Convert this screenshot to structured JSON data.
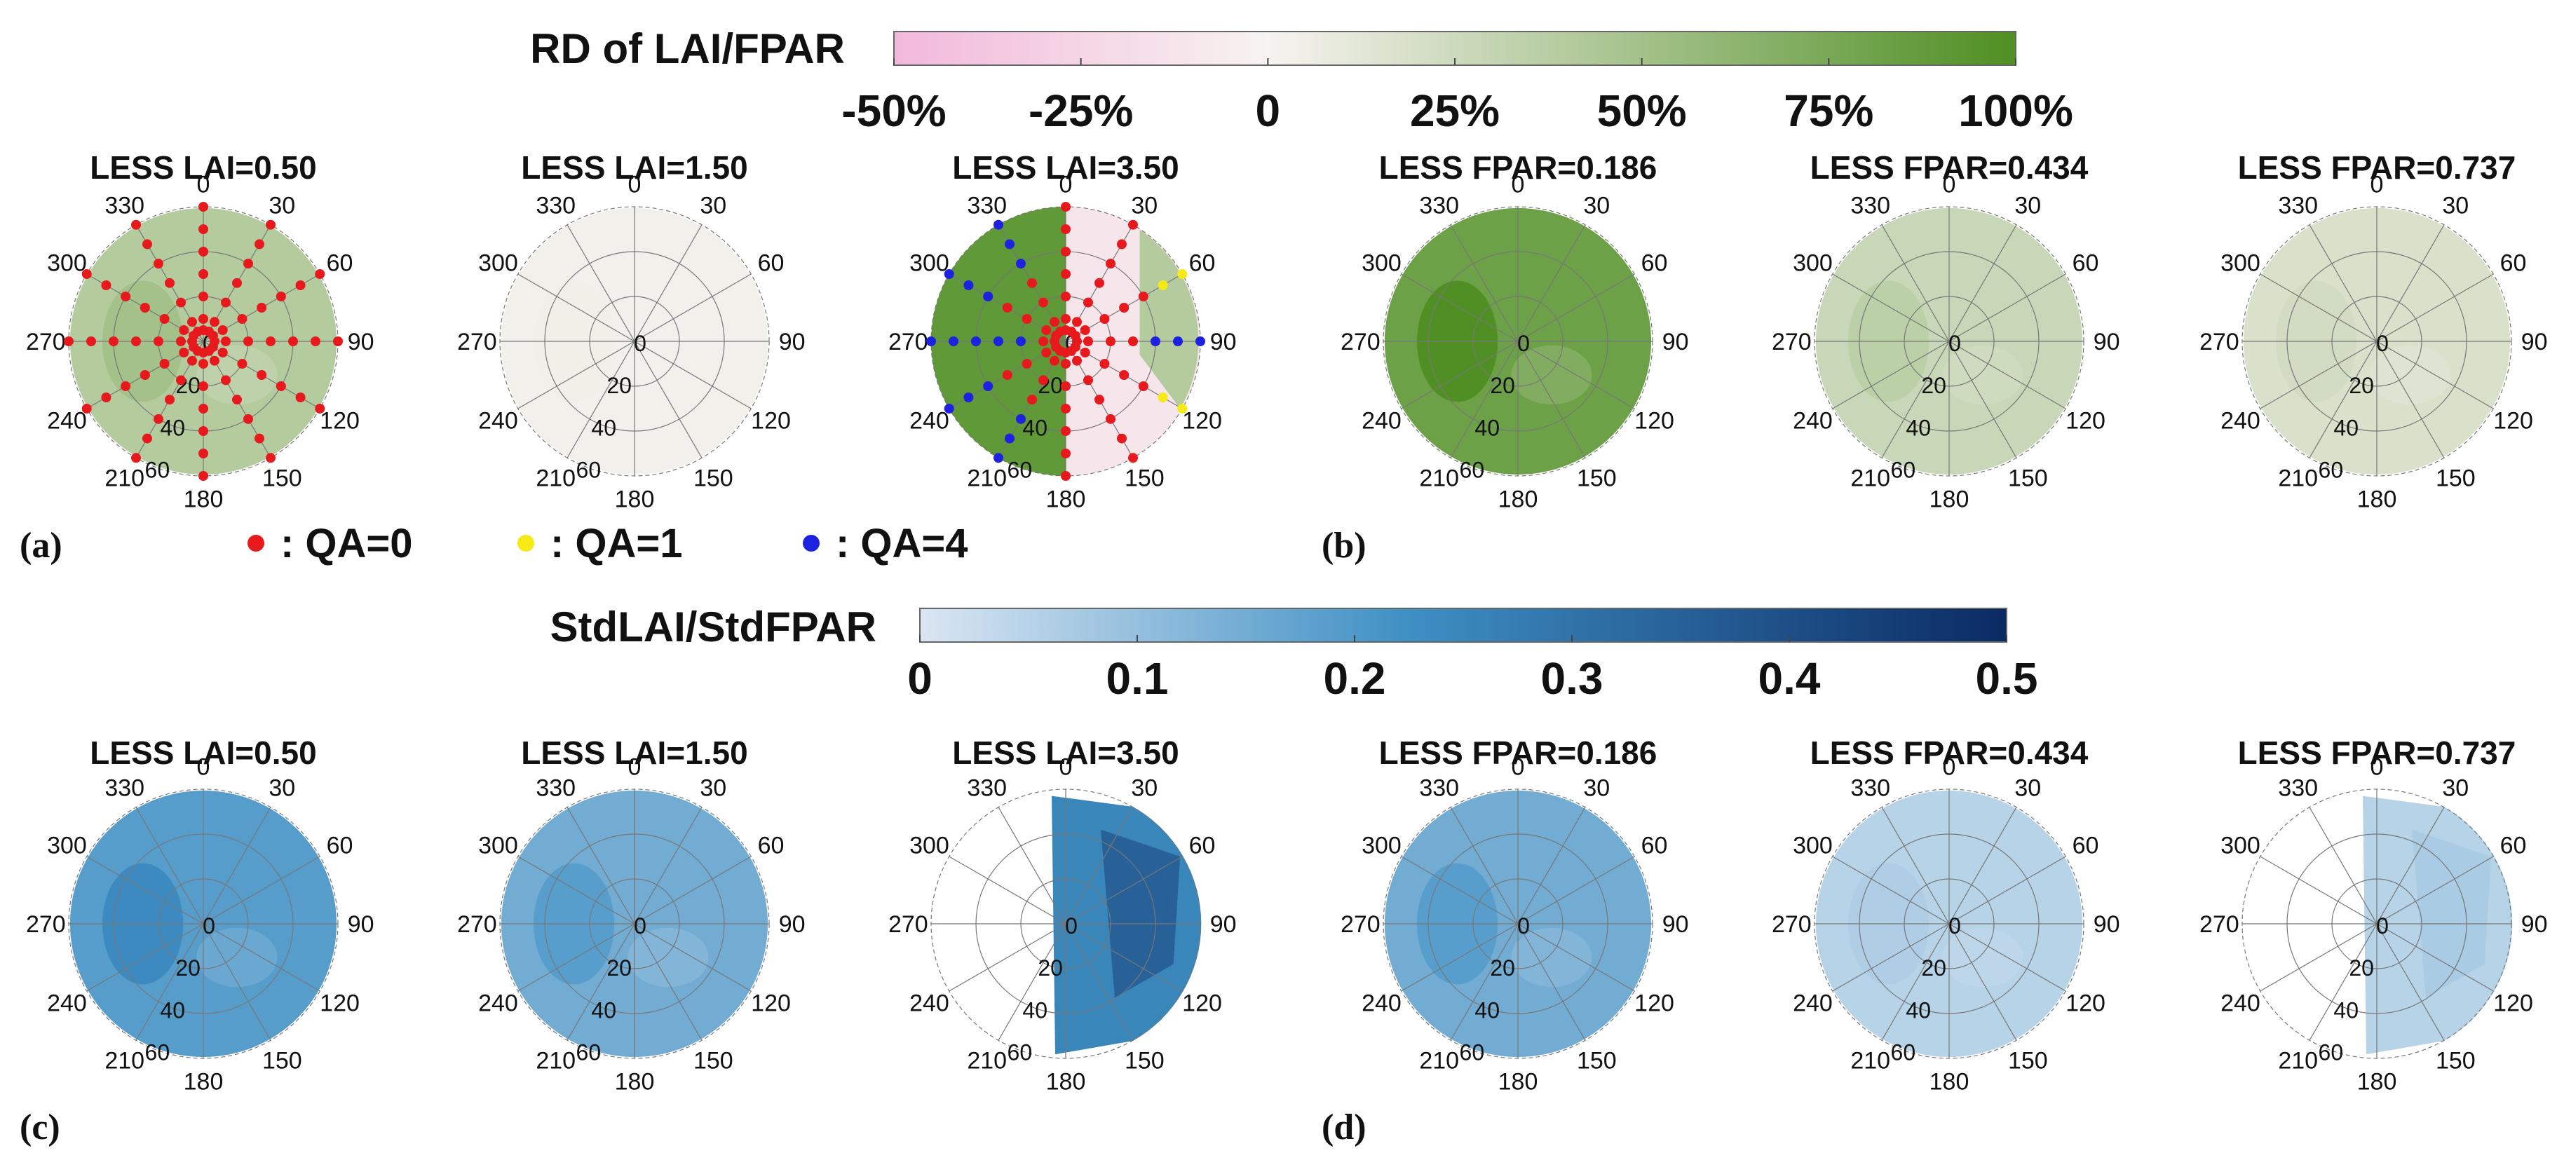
{
  "chart_data": {
    "type": "heatmap",
    "plot_kind": "polar contour maps (view azimuth 0-360, view zenith 0-60)",
    "groups": [
      {
        "id": "rd",
        "colorbar": {
          "title": "RD of LAI/FPAR",
          "ticks": [
            "-50%",
            "-25%",
            "0",
            "25%",
            "50%",
            "75%",
            "100%"
          ],
          "range": [
            -50,
            100
          ],
          "unit": "%",
          "colors": [
            "#f2b8db",
            "#f7f3f0",
            "#4f8f23"
          ]
        },
        "letters": [
          "(a)",
          "(b)"
        ],
        "panels": [
          {
            "title": "LESS LAI=0.50",
            "mean_value": 40,
            "points": "all_qa0"
          },
          {
            "title": "LESS LAI=1.50",
            "mean_value": 3
          },
          {
            "title": "LESS LAI=3.50",
            "left_value": 90,
            "right_value": -12,
            "points": "mixed_qa"
          },
          {
            "title": "LESS FPAR=0.186",
            "mean_value": 82
          },
          {
            "title": "LESS FPAR=0.434",
            "mean_value": 28
          },
          {
            "title": "LESS FPAR=0.737",
            "mean_value": 18
          }
        ]
      },
      {
        "id": "std",
        "colorbar": {
          "title": "StdLAI/StdFPAR",
          "ticks": [
            "0",
            "0.1",
            "0.2",
            "0.3",
            "0.4",
            "0.5"
          ],
          "range": [
            0,
            0.5
          ],
          "colors": [
            "#dae6f2",
            "#3e8fc4",
            "#0b2a63"
          ]
        },
        "letters": [
          "(c)",
          "(d)"
        ],
        "panels": [
          {
            "title": "LESS LAI=0.50",
            "mean_value": 0.19
          },
          {
            "title": "LESS LAI=1.50",
            "mean_value": 0.15
          },
          {
            "title": "LESS LAI=3.50",
            "mean_value": 0.25,
            "coverage": "half"
          },
          {
            "title": "LESS FPAR=0.186",
            "mean_value": 0.15
          },
          {
            "title": "LESS FPAR=0.434",
            "mean_value": 0.05
          },
          {
            "title": "LESS FPAR=0.737",
            "mean_value": 0.05,
            "coverage": "half"
          }
        ]
      }
    ],
    "azimuth_ticks": [
      "0",
      "30",
      "60",
      "90",
      "120",
      "150",
      "180",
      "210",
      "240",
      "270",
      "300",
      "330"
    ],
    "zenith_ticks": [
      "0",
      "20",
      "40",
      "60"
    ],
    "zenith_range": [
      0,
      60
    ],
    "qa_legend": [
      {
        "label": ": QA=0",
        "color": "#e8191c"
      },
      {
        "label": ": QA=1",
        "color": "#f6ea16"
      },
      {
        "label": ": QA=4",
        "color": "#1c22e0"
      }
    ]
  }
}
